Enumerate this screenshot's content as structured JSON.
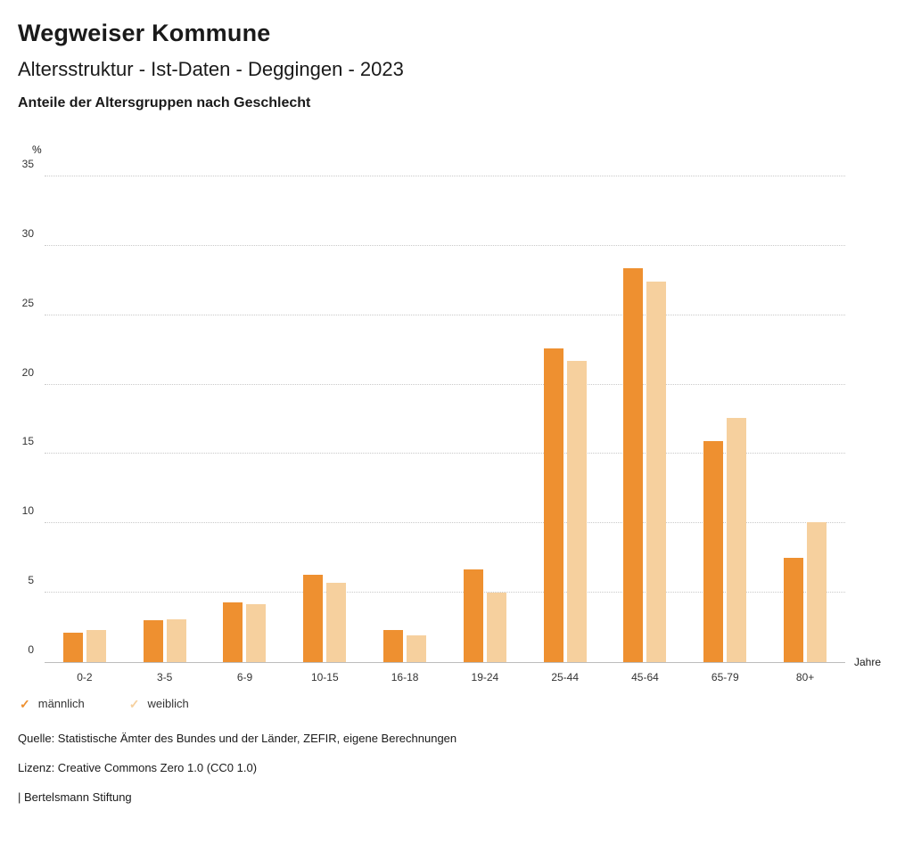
{
  "header": {
    "title": "Wegweiser Kommune",
    "subtitle": "Altersstruktur - Ist-Daten - Deggingen - 2023",
    "heading": "Anteile der Altersgruppen nach Geschlecht"
  },
  "chart_data": {
    "type": "bar",
    "title": "Anteile der Altersgruppen nach Geschlecht",
    "categories": [
      "0-2",
      "3-5",
      "6-9",
      "10-15",
      "16-18",
      "19-24",
      "25-44",
      "45-64",
      "65-79",
      "80+"
    ],
    "series": [
      {
        "name": "männlich",
        "color": "#ee9030",
        "values": [
          2.1,
          3.0,
          4.3,
          6.3,
          2.3,
          6.7,
          22.6,
          28.4,
          15.9,
          7.5
        ]
      },
      {
        "name": "weiblich",
        "color": "#f6d09e",
        "values": [
          2.3,
          3.1,
          4.2,
          5.7,
          1.9,
          5.0,
          21.7,
          27.4,
          17.6,
          10.1
        ]
      }
    ],
    "xlabel": "Jahre",
    "ylabel": "%",
    "ylim": [
      0,
      35
    ],
    "ytick_step": 5,
    "grid": true,
    "legend_position": "bottom",
    "legend_check_icon": "✓"
  },
  "footer": {
    "source": "Quelle: Statistische Ämter des Bundes und der Länder, ZEFIR, eigene Berechnungen",
    "license": "Lizenz: Creative Commons Zero 1.0 (CC0 1.0)",
    "attribution": "| Bertelsmann Stiftung"
  }
}
